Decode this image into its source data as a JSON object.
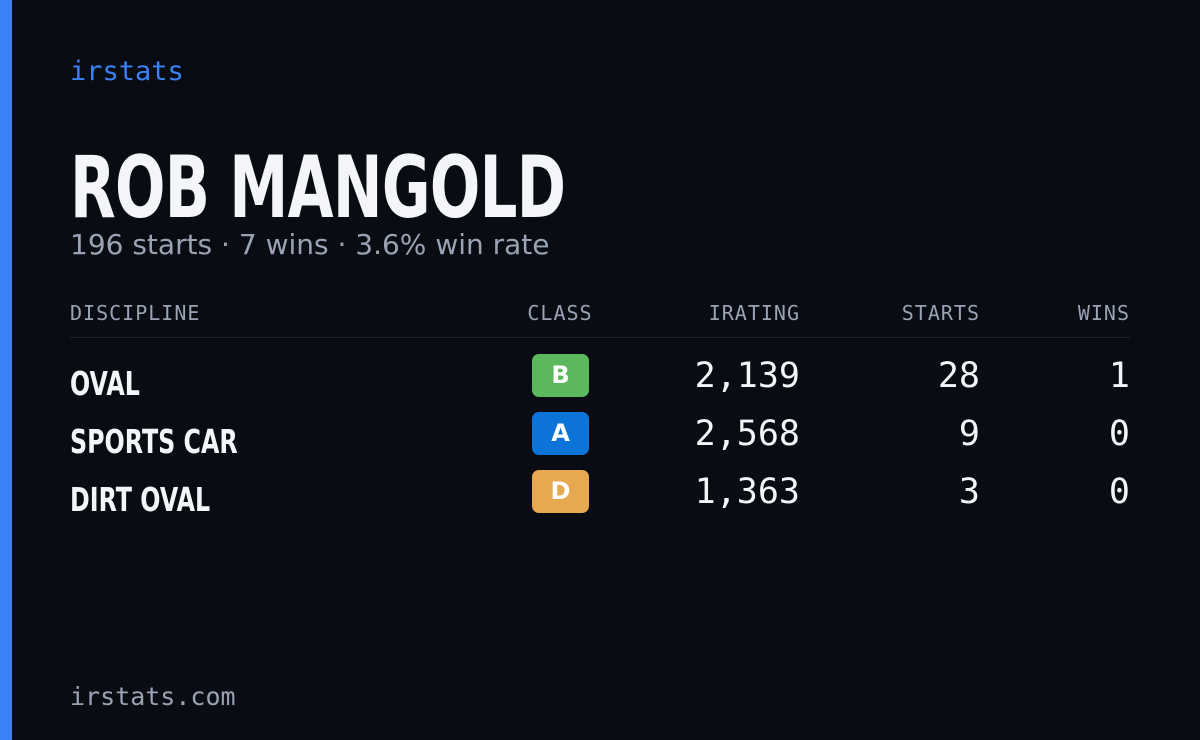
{
  "brand": "irstats",
  "name": "ROB MANGOLD",
  "subtitle": "196 starts · 7 wins · 3.6% win rate",
  "table": {
    "headers": [
      "DISCIPLINE",
      "CLASS",
      "IRATING",
      "STARTS",
      "WINS"
    ],
    "rows": [
      {
        "discipline": "OVAL",
        "class": "B",
        "class_color": "#5cb85c",
        "irating": "2,139",
        "starts": "28",
        "wins": "1"
      },
      {
        "discipline": "SPORTS CAR",
        "class": "A",
        "class_color": "#0c74d8",
        "irating": "2,568",
        "starts": "9",
        "wins": "0"
      },
      {
        "discipline": "DIRT OVAL",
        "class": "D",
        "class_color": "#e7a94f",
        "irating": "1,363",
        "starts": "3",
        "wins": "0"
      }
    ]
  },
  "footer": "irstats.com"
}
